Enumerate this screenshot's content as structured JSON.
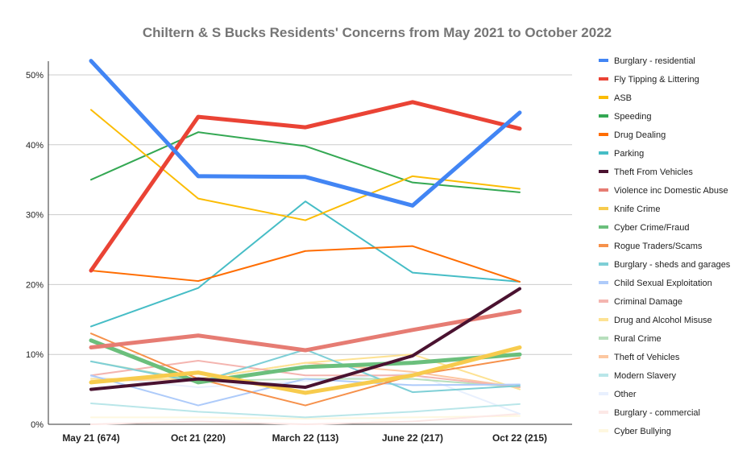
{
  "chart_data": {
    "type": "line",
    "title": "Chiltern & S Bucks Residents' Concerns from May 2021 to October 2022",
    "xlabel": "",
    "ylabel": "",
    "categories": [
      "May 21 (674)",
      "Oct 21 (220)",
      "March 22 (113)",
      "June 22 (217)",
      "Oct 22 (215)"
    ],
    "ylim": [
      0,
      50
    ],
    "yticks": [
      "0%",
      "10%",
      "20%",
      "30%",
      "40%",
      "50%"
    ],
    "yticks_values": [
      0,
      10,
      20,
      30,
      40,
      50
    ],
    "grid": true,
    "legend": "right",
    "series": [
      {
        "name": "Burglary - residential",
        "color": "#4285f4",
        "weight": 5,
        "values": [
          52,
          35.5,
          35.4,
          31.3,
          44.6
        ]
      },
      {
        "name": "Fly Tipping & Littering",
        "color": "#ea4335",
        "weight": 5,
        "values": [
          22,
          44,
          42.5,
          46.1,
          42.3
        ]
      },
      {
        "name": "ASB",
        "color": "#fbbc04",
        "weight": 2,
        "values": [
          45,
          32.3,
          29.2,
          35.5,
          33.7
        ]
      },
      {
        "name": "Speeding",
        "color": "#34a853",
        "weight": 2,
        "values": [
          35,
          41.8,
          39.8,
          34.6,
          33.2
        ]
      },
      {
        "name": "Drug Dealing",
        "color": "#ff6d01",
        "weight": 2,
        "values": [
          22,
          20.5,
          24.8,
          25.5,
          20.4
        ]
      },
      {
        "name": "Parking",
        "color": "#46bdc6",
        "weight": 2,
        "values": [
          14,
          19.5,
          31.9,
          21.7,
          20.4
        ]
      },
      {
        "name": "Theft From Vehicles",
        "color": "#4a1230",
        "weight": 4,
        "values": [
          5,
          6.5,
          5.3,
          9.8,
          19.4
        ]
      },
      {
        "name": "Violence inc Domestic Abuse",
        "color": "#e67c73",
        "weight": 5,
        "values": [
          11,
          12.7,
          10.6,
          13.5,
          16.2
        ]
      },
      {
        "name": "Knife Crime",
        "color": "#f7cb4d",
        "weight": 5,
        "values": [
          6,
          7.4,
          4.5,
          7,
          11
        ]
      },
      {
        "name": "Cyber Crime/Fraud",
        "color": "#6bbf7c",
        "weight": 5,
        "values": [
          12,
          6,
          8.2,
          8.8,
          10
        ]
      },
      {
        "name": "Rogue Traders/Scams",
        "color": "#f6914b",
        "weight": 2,
        "values": [
          13,
          6.5,
          2.7,
          7,
          9.5
        ]
      },
      {
        "name": "Burglary - sheds and garages",
        "color": "#7ecfd6",
        "weight": 2,
        "values": [
          9,
          6,
          10.7,
          4.6,
          5.5
        ]
      },
      {
        "name": "Child Sexual Exploitation",
        "color": "#aecbfa",
        "weight": 2,
        "values": [
          7,
          2.7,
          6.5,
          5.6,
          5.7
        ]
      },
      {
        "name": "Criminal Damage",
        "color": "#f4b5b0",
        "weight": 2,
        "values": [
          7,
          9.1,
          7,
          7,
          5.3
        ]
      },
      {
        "name": "Drug and Alcohol Misuse",
        "color": "#fde293",
        "weight": 2,
        "values": [
          6.5,
          6.5,
          8.8,
          10,
          5
        ]
      },
      {
        "name": "Rural Crime",
        "color": "#b7dfbd",
        "weight": 2,
        "values": [
          9,
          6.2,
          6.5,
          6.5,
          5.3
        ]
      },
      {
        "name": "Theft of Vehicles",
        "color": "#fcc7a1",
        "weight": 2,
        "values": [
          6.2,
          6.5,
          8.8,
          7.5,
          5.3
        ]
      },
      {
        "name": "Modern Slavery",
        "color": "#b9e6e9",
        "weight": 2,
        "values": [
          3,
          1.8,
          1,
          1.8,
          2.9
        ]
      },
      {
        "name": "Other",
        "color": "#e8f0fe",
        "weight": 2,
        "values": [
          6.8,
          5.3,
          6.2,
          7.3,
          1.5
        ]
      },
      {
        "name": "Burglary - commercial",
        "color": "#fce8e6",
        "weight": 2,
        "values": [
          0,
          0.4,
          0,
          0.4,
          1.5
        ]
      },
      {
        "name": "Cyber Bullying",
        "color": "#fef7e0",
        "weight": 2,
        "values": [
          1,
          1,
          0.8,
          1,
          1.2
        ]
      }
    ]
  }
}
